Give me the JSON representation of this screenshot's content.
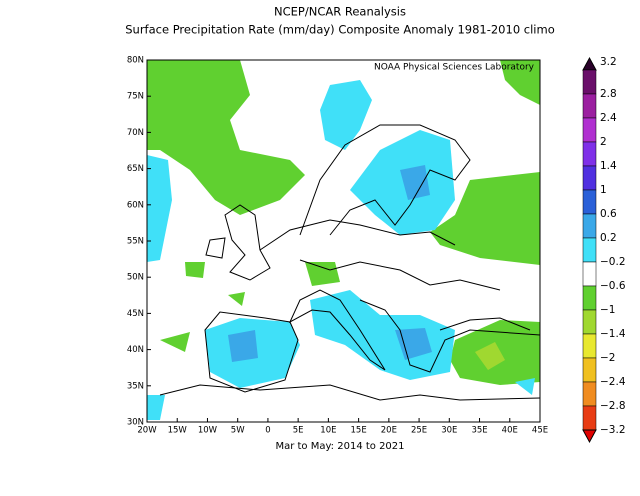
{
  "header": {
    "title": "NCEP/NCAR Reanalysis",
    "subtitle": "Surface Precipitation Rate (mm/day) Composite Anomaly 1981-2010 climo",
    "credit": "NOAA Physical Sciences Laboratory",
    "footer": "Mar to May: 2014 to 2021"
  },
  "map": {
    "lat_labels": [
      "80N",
      "75N",
      "70N",
      "65N",
      "60N",
      "55N",
      "50N",
      "45N",
      "40N",
      "35N",
      "30N"
    ],
    "lon_labels": [
      "20W",
      "15W",
      "10W",
      "5W",
      "0",
      "5E",
      "10E",
      "15E",
      "20E",
      "25E",
      "30E",
      "35E",
      "40E",
      "45E"
    ]
  },
  "colorbar": {
    "labels": [
      "3.2",
      "2.8",
      "2.4",
      "2",
      "1.4",
      "1",
      "0.6",
      "0.2",
      "−0.2",
      "−0.6",
      "−1",
      "−1.4",
      "−2",
      "−2.4",
      "−2.8",
      "−3.2"
    ]
  }
}
